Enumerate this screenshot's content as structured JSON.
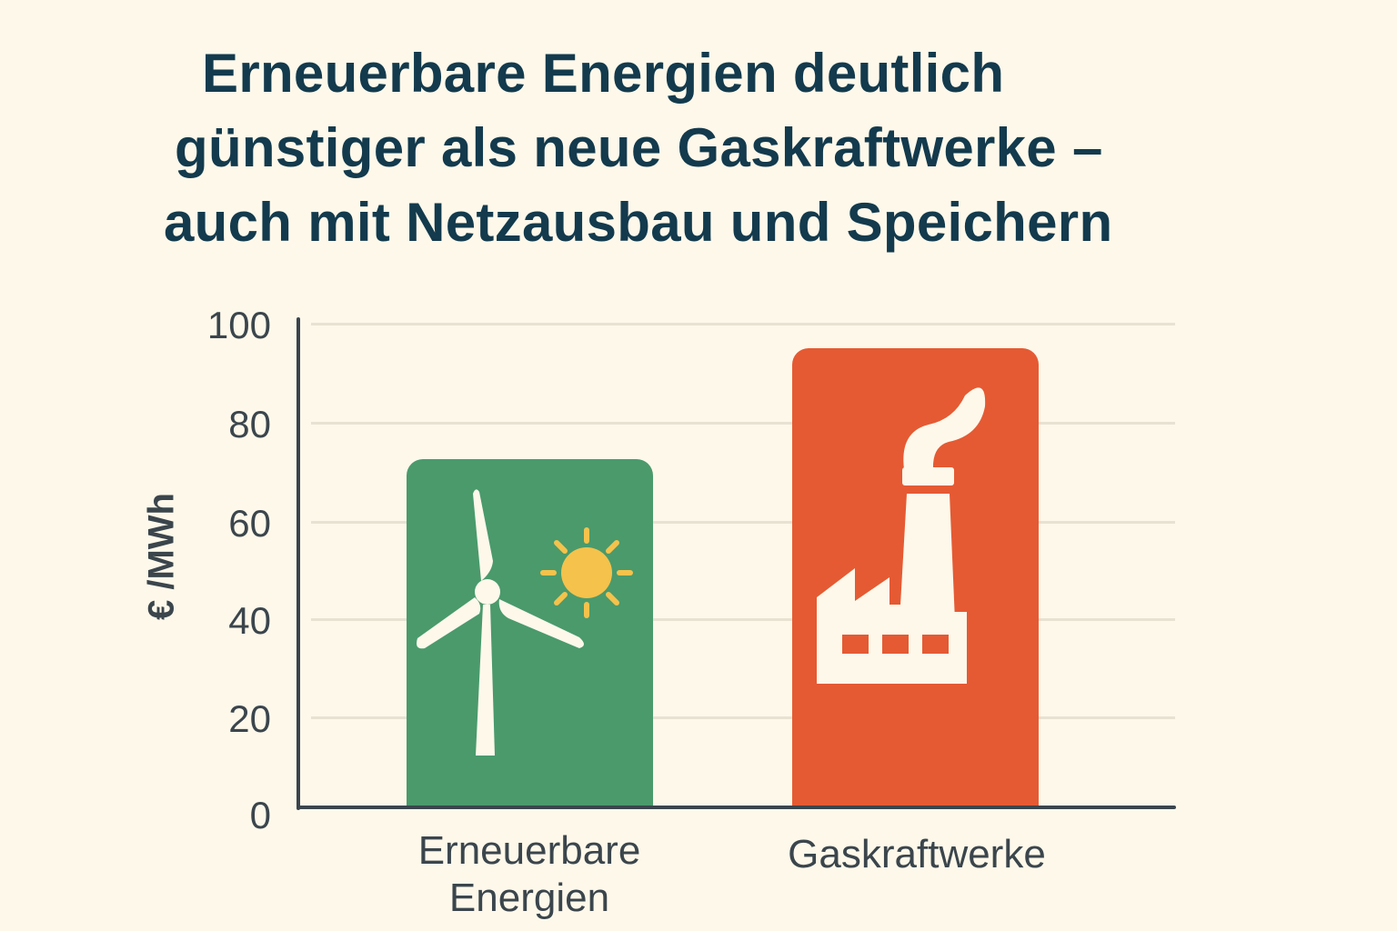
{
  "title": {
    "lines": [
      "Erneuerbare Energien deutlich",
      "günstiger als neue Gaskraftwerke –",
      "auch mit Netzausbau und Speichern"
    ]
  },
  "axis": {
    "ylabel": "€ /MWh",
    "yticks": [
      "0",
      "20",
      "40",
      "60",
      "80",
      "100"
    ]
  },
  "bars": [
    {
      "label_line1": "Erneuerbare",
      "label_line2": "Energien",
      "icon": "wind-turbine-sun-icon",
      "color": "#4A9A6C"
    },
    {
      "label_line1": "Gaskraftwerke",
      "label_line2": "",
      "icon": "factory-icon",
      "color": "#E55A33"
    }
  ],
  "colors": {
    "background": "#FDF8EA",
    "title": "#133A4D",
    "axis": "#3B454C",
    "grid": "#E8E2D3",
    "renewables": "#4A9A6C",
    "gas": "#E55A33",
    "sun": "#F5C24B",
    "icon": "#FDF8EA"
  },
  "chart_data": {
    "type": "bar",
    "title": "Erneuerbare Energien deutlich günstiger als neue Gaskraftwerke – auch mit Netzausbau und Speichern",
    "categories": [
      "Erneuerbare Energien",
      "Gaskraftwerke"
    ],
    "values": [
      72,
      95
    ],
    "xlabel": "",
    "ylabel": "€ /MWh",
    "ylim": [
      0,
      100
    ],
    "yticks": [
      0,
      20,
      40,
      60,
      80,
      100
    ],
    "grid": true,
    "legend": null,
    "bar_colors": [
      "#4A9A6C",
      "#E55A33"
    ]
  }
}
